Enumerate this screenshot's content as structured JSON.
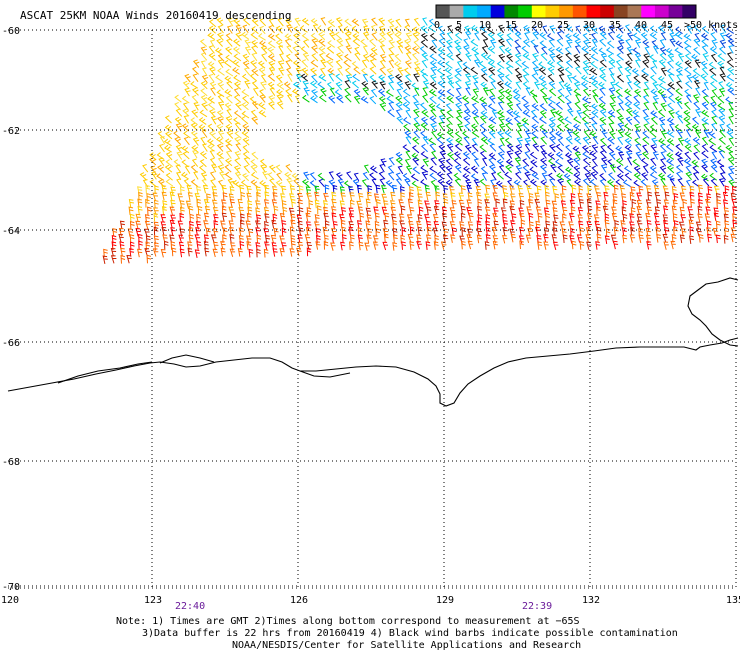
{
  "title": "ASCAT 25KM NOAA Winds 20160419 descending",
  "colorbar": {
    "colors": [
      "#555555",
      "#aaaaaa",
      "#00ccee",
      "#00aaff",
      "#0000dd",
      "#008800",
      "#00cc00",
      "#ffff00",
      "#ffcc00",
      "#ff9900",
      "#ff5500",
      "#ff0000",
      "#cc0000",
      "#884422",
      "#aa7755",
      "#ff00ff",
      "#cc00cc",
      "#770099",
      "#330066"
    ],
    "labels": [
      "0",
      "5",
      "10",
      "15",
      "20",
      "25",
      "30",
      "35",
      "40",
      "45",
      ">50 knots"
    ]
  },
  "lat_labels": [
    "-60",
    "-62",
    "-64",
    "-66",
    "-68",
    "-70"
  ],
  "lon_labels": [
    "120",
    "123",
    "126",
    "129",
    "132",
    "135"
  ],
  "time_labels": [
    "22:40",
    "22:39"
  ],
  "notes": [
    "Note: 1) Times are GMT 2)Times along bottom correspond to measurement at −65S",
    "3)Data buffer is 22 hrs from 20160419 4) Black wind barbs indicate possible contamination",
    "NOAA/NESDIS/Center for Satellite Applications and Research"
  ]
}
